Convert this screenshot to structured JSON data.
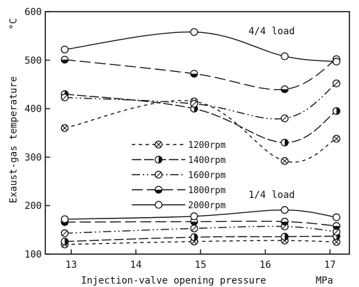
{
  "chart_data": {
    "type": "line",
    "title": "",
    "xlabel": "Injection-valve opening pressure",
    "xunit": "MPa",
    "ylabel": "Exaust-gas temperature",
    "yunit": "°C",
    "xlim": [
      12.6,
      17.3
    ],
    "ylim": [
      100,
      600
    ],
    "xticks": [
      13,
      14,
      15,
      16,
      17
    ],
    "yticks": [
      100,
      200,
      300,
      400,
      500,
      600
    ],
    "grid": false,
    "x": [
      12.9,
      14.9,
      16.3,
      17.1
    ],
    "groups": [
      {
        "label": "4/4 load",
        "series": [
          {
            "name": "1200rpm",
            "values": [
              360,
              415,
              292,
              338
            ]
          },
          {
            "name": "1400rpm",
            "values": [
              430,
              400,
              330,
              395
            ]
          },
          {
            "name": "1600rpm",
            "values": [
              423,
              410,
              380,
              452
            ]
          },
          {
            "name": "1800rpm",
            "values": [
              501,
              472,
              440,
              502
            ]
          },
          {
            "name": "2000rpm",
            "values": [
              522,
              558,
              508,
              497
            ]
          }
        ]
      },
      {
        "label": "1/4 load",
        "series": [
          {
            "name": "1200rpm",
            "values": [
              120,
              126,
              128,
              125
            ]
          },
          {
            "name": "1400rpm",
            "values": [
              126,
              135,
              136,
              137
            ]
          },
          {
            "name": "1600rpm",
            "values": [
              143,
              153,
              157,
              146
            ]
          },
          {
            "name": "1800rpm",
            "values": [
              166,
              167,
              167,
              158
            ]
          },
          {
            "name": "2000rpm",
            "values": [
              172,
              178,
              191,
              176
            ]
          }
        ]
      }
    ],
    "legend": {
      "position": "center",
      "entries": [
        {
          "name": "1200rpm",
          "marker": "crossed-circle",
          "dash": "5,5"
        },
        {
          "name": "1400rpm",
          "marker": "half-filled-circle",
          "dash": "14,4"
        },
        {
          "name": "1600rpm",
          "marker": "slashed-circle",
          "dash": "12,4,2,4,2,4"
        },
        {
          "name": "1800rpm",
          "marker": "filled-bottom-circle",
          "dash": "16,6"
        },
        {
          "name": "2000rpm",
          "marker": "open-circle",
          "dash": ""
        }
      ]
    },
    "annotations": [
      "4/4 load",
      "1/4 load"
    ]
  }
}
